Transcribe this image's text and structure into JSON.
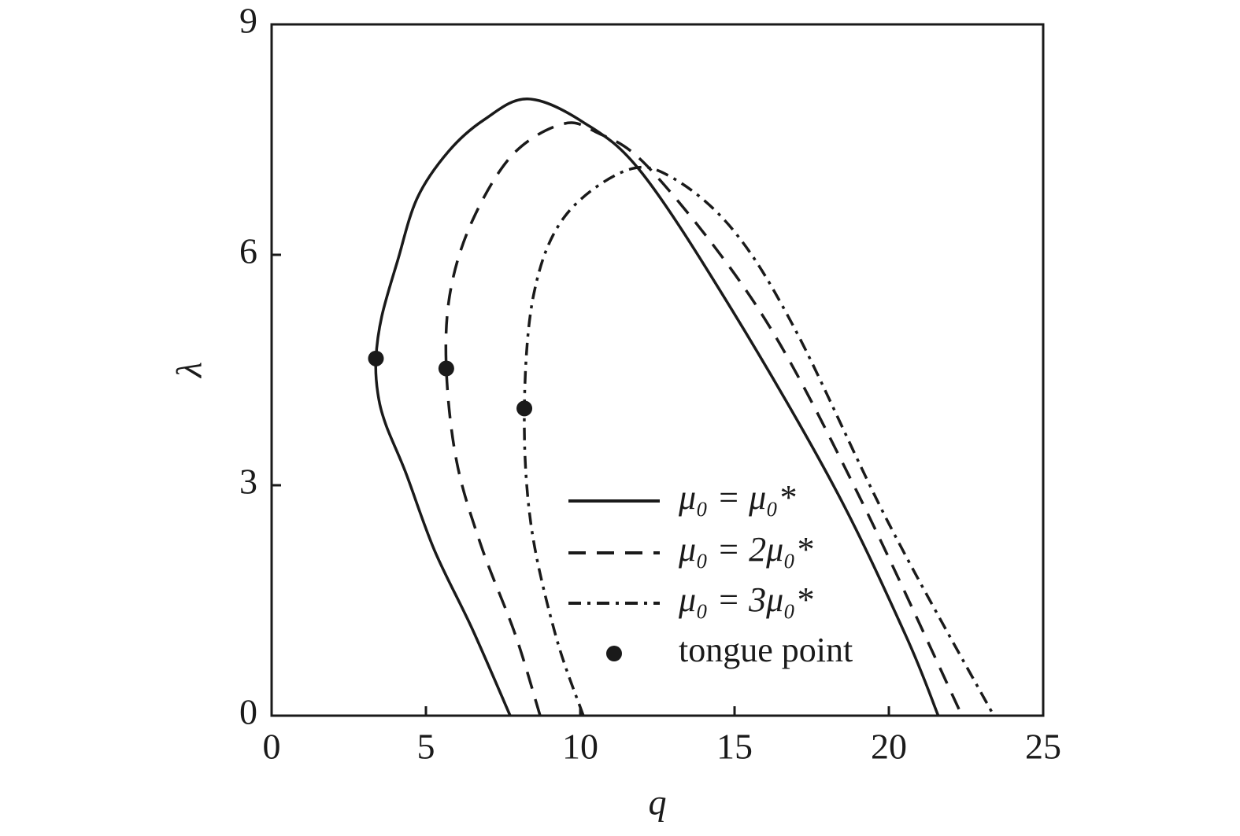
{
  "chart_data": {
    "type": "line",
    "x_label": "q",
    "y_label": "λ",
    "xlim": [
      0,
      25
    ],
    "ylim": [
      0,
      9
    ],
    "xticks": [
      0,
      5,
      10,
      15,
      20,
      25
    ],
    "yticks": [
      0,
      3,
      6,
      9
    ],
    "grid": false,
    "series": [
      {
        "name": "μ₀ = μ₀*",
        "color": "#1a1a1a",
        "style": "solid",
        "x": [
          7.73,
          6.5,
          5.28,
          4.34,
          3.7,
          3.44,
          3.38,
          3.57,
          4.08,
          4.72,
          5.74,
          6.89,
          8.29,
          10.08,
          11.99,
          14.92,
          18.24,
          20.54,
          21.6
        ],
        "values": [
          0,
          1.13,
          2.15,
          3.17,
          3.79,
          4.2,
          4.65,
          5.2,
          5.92,
          6.74,
          7.35,
          7.76,
          8.03,
          7.73,
          7.07,
          5.28,
          2.97,
          1.05,
          0
        ]
      },
      {
        "name": "μ₀ = 2μ₀*",
        "color": "#1a1a1a",
        "style": "dashed",
        "x": [
          8.7,
          7.9,
          6.8,
          6.0,
          5.66,
          5.79,
          6.5,
          7.8,
          9.4,
          10.5,
          12.3,
          15.8,
          18.9,
          22.37
        ],
        "values": [
          0,
          1.05,
          2.2,
          3.3,
          4.52,
          5.52,
          6.44,
          7.3,
          7.7,
          7.6,
          7.1,
          5.28,
          2.97,
          0
        ]
      },
      {
        "name": "μ₀ = 3μ₀*",
        "color": "#1a1a1a",
        "style": "dashdot",
        "x": [
          10.1,
          9.2,
          8.4,
          8.19,
          8.5,
          9.5,
          11.5,
          13.0,
          15.0,
          17.0,
          20.0,
          23.4
        ],
        "values": [
          0,
          1.05,
          2.5,
          4.0,
          5.5,
          6.5,
          7.1,
          7.0,
          6.3,
          5.0,
          2.5,
          0
        ]
      },
      {
        "name": "tongue point",
        "color": "#1a1a1a",
        "style": "marker",
        "x": [
          3.38,
          5.66,
          8.19
        ],
        "values": [
          4.65,
          4.52,
          4.0
        ]
      }
    ]
  }
}
